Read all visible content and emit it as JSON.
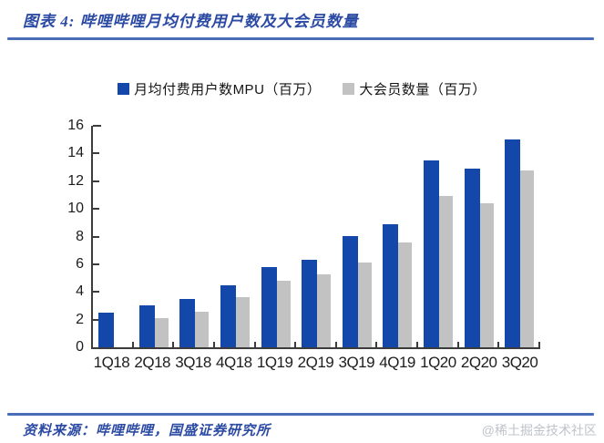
{
  "header": {
    "title": "图表 4: 哔哩哔哩月均付费用户数及大会员数量"
  },
  "legend": {
    "items": [
      {
        "label": "月均付费用户数MPU（百万）",
        "color": "#1347a9"
      },
      {
        "label": "大会员数量（百万）",
        "color": "#c2c2c2"
      }
    ]
  },
  "chart_data": {
    "type": "bar",
    "title": "哔哩哔哩月均付费用户数及大会员数量",
    "categories": [
      "1Q18",
      "2Q18",
      "3Q18",
      "4Q18",
      "1Q19",
      "2Q19",
      "3Q19",
      "4Q19",
      "1Q20",
      "2Q20",
      "3Q20"
    ],
    "series": [
      {
        "name": "月均付费用户数MPU（百万）",
        "color": "#1347a9",
        "values": [
          2.5,
          3.0,
          3.5,
          4.5,
          5.8,
          6.3,
          8.0,
          8.9,
          13.5,
          12.9,
          15.0
        ]
      },
      {
        "name": "大会员数量（百万）",
        "color": "#c2c2c2",
        "values": [
          null,
          2.1,
          2.6,
          3.6,
          4.8,
          5.3,
          6.1,
          7.6,
          10.9,
          10.4,
          12.8
        ]
      }
    ],
    "xlabel": "",
    "ylabel": "",
    "ylim": [
      0,
      16
    ],
    "yticks": [
      0,
      2,
      4,
      6,
      8,
      10,
      12,
      14,
      16
    ],
    "grid": false,
    "legend_position": "top",
    "axis_color": "#3c3c3c"
  },
  "footer": {
    "source": "资料来源：哔哩哔哩，国盛证券研究所",
    "watermark": "@稀土掘金技术社区"
  }
}
